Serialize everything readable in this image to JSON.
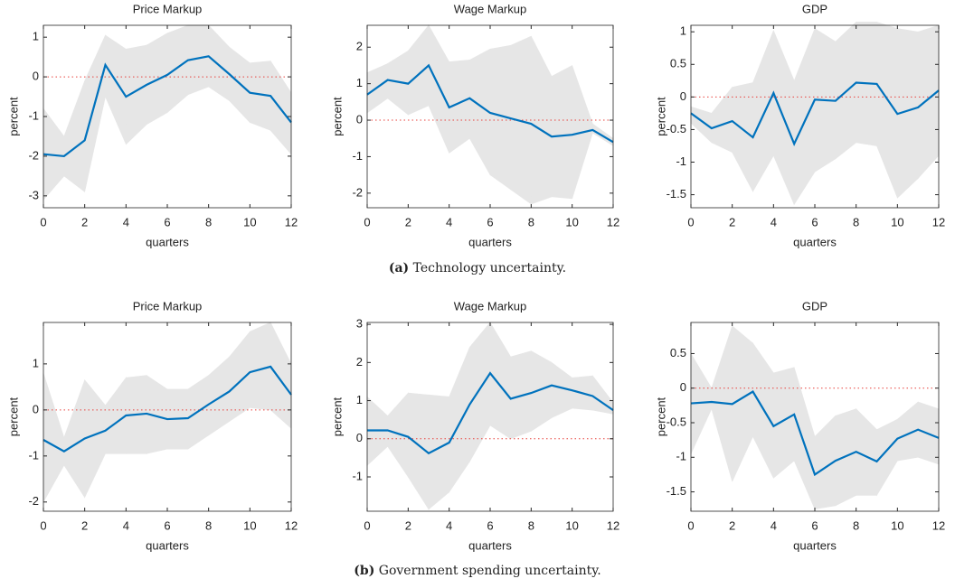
{
  "chart_data": [
    {
      "type": "line",
      "title": "Price Markup",
      "xlabel": "quarters",
      "ylabel": "percent",
      "x": [
        0,
        1,
        2,
        3,
        4,
        5,
        6,
        7,
        8,
        9,
        10,
        11,
        12
      ],
      "values": [
        -1.95,
        -2.0,
        -1.6,
        0.3,
        -0.5,
        -0.2,
        0.05,
        0.42,
        0.52,
        0.07,
        -0.4,
        -0.48,
        -1.15
      ],
      "upper": [
        -0.8,
        -1.5,
        -0.1,
        1.05,
        0.7,
        0.8,
        1.1,
        1.3,
        1.3,
        0.75,
        0.35,
        0.4,
        -0.4
      ],
      "lower": [
        -3.1,
        -2.5,
        -2.9,
        -0.5,
        -1.7,
        -1.2,
        -0.9,
        -0.45,
        -0.25,
        -0.6,
        -1.15,
        -1.35,
        -1.95
      ],
      "hline": 0,
      "color": "#0072bd",
      "band_color": "#e6e6e6",
      "hline_color": "#e8413c",
      "xlim": [
        0,
        12
      ],
      "xticks": [
        0,
        2,
        4,
        6,
        8,
        10,
        12
      ],
      "ylim": [
        -3.3,
        1.3
      ],
      "yticks": [
        -3,
        -2,
        -1,
        0,
        1
      ]
    },
    {
      "type": "line",
      "title": "Wage Markup",
      "xlabel": "quarters",
      "ylabel": "percent",
      "x": [
        0,
        1,
        2,
        3,
        4,
        5,
        6,
        7,
        8,
        9,
        10,
        11,
        12
      ],
      "values": [
        0.7,
        1.1,
        1.0,
        1.5,
        0.35,
        0.6,
        0.2,
        0.05,
        -0.1,
        -0.45,
        -0.4,
        -0.27,
        -0.6
      ],
      "upper": [
        1.3,
        1.55,
        1.9,
        2.6,
        1.6,
        1.65,
        1.95,
        2.05,
        2.3,
        1.2,
        1.5,
        -0.1,
        -0.5
      ],
      "lower": [
        0.2,
        0.6,
        0.15,
        0.4,
        -0.9,
        -0.5,
        -1.5,
        -1.9,
        -2.3,
        -2.1,
        -2.15,
        -0.35,
        -0.7
      ],
      "hline": 0,
      "color": "#0072bd",
      "band_color": "#e6e6e6",
      "hline_color": "#e8413c",
      "xlim": [
        0,
        12
      ],
      "xticks": [
        0,
        2,
        4,
        6,
        8,
        10,
        12
      ],
      "ylim": [
        -2.4,
        2.6
      ],
      "yticks": [
        -2,
        -1,
        0,
        1,
        2
      ]
    },
    {
      "type": "line",
      "title": "GDP",
      "xlabel": "quarters",
      "ylabel": "percent",
      "x": [
        0,
        1,
        2,
        3,
        4,
        5,
        6,
        7,
        8,
        9,
        10,
        11,
        12
      ],
      "values": [
        -0.25,
        -0.48,
        -0.37,
        -0.62,
        0.06,
        -0.72,
        -0.04,
        -0.06,
        0.22,
        0.2,
        -0.26,
        -0.16,
        0.1
      ],
      "upper": [
        -0.15,
        -0.25,
        0.15,
        0.22,
        1.02,
        0.25,
        1.05,
        0.85,
        1.15,
        1.15,
        1.05,
        1.0,
        1.1
      ],
      "lower": [
        -0.4,
        -0.7,
        -0.85,
        -1.45,
        -0.9,
        -1.65,
        -1.15,
        -0.95,
        -0.7,
        -0.75,
        -1.55,
        -1.25,
        -0.9
      ],
      "hline": 0,
      "color": "#0072bd",
      "band_color": "#e6e6e6",
      "hline_color": "#e8413c",
      "xlim": [
        0,
        12
      ],
      "xticks": [
        0,
        2,
        4,
        6,
        8,
        10,
        12
      ],
      "ylim": [
        -1.7,
        1.1
      ],
      "yticks": [
        -1.5,
        -1,
        -0.5,
        0,
        0.5,
        1
      ]
    },
    {
      "type": "line",
      "title": "Price Markup",
      "xlabel": "quarters",
      "ylabel": "percent",
      "x": [
        0,
        1,
        2,
        3,
        4,
        5,
        6,
        7,
        8,
        9,
        10,
        11,
        12
      ],
      "values": [
        -0.65,
        -0.9,
        -0.62,
        -0.45,
        -0.12,
        -0.08,
        -0.2,
        -0.18,
        0.12,
        0.4,
        0.82,
        0.94,
        0.33
      ],
      "upper": [
        0.8,
        -0.6,
        0.65,
        0.1,
        0.7,
        0.75,
        0.45,
        0.45,
        0.75,
        1.15,
        1.7,
        1.9,
        1.0
      ],
      "lower": [
        -2.0,
        -1.2,
        -1.9,
        -0.95,
        -0.95,
        -0.95,
        -0.85,
        -0.85,
        -0.55,
        -0.25,
        0.05,
        0.0,
        -0.4
      ],
      "hline": 0,
      "color": "#0072bd",
      "band_color": "#e6e6e6",
      "hline_color": "#e8413c",
      "xlim": [
        0,
        12
      ],
      "xticks": [
        0,
        2,
        4,
        6,
        8,
        10,
        12
      ],
      "ylim": [
        -2.2,
        1.9
      ],
      "yticks": [
        -2,
        -1,
        0,
        1
      ]
    },
    {
      "type": "line",
      "title": "Wage Markup",
      "xlabel": "quarters",
      "ylabel": "percent",
      "x": [
        0,
        1,
        2,
        3,
        4,
        5,
        6,
        7,
        8,
        9,
        10,
        11,
        12
      ],
      "values": [
        0.22,
        0.22,
        0.05,
        -0.38,
        -0.1,
        0.9,
        1.72,
        1.05,
        1.2,
        1.4,
        1.27,
        1.12,
        0.75
      ],
      "upper": [
        1.1,
        0.6,
        1.2,
        1.15,
        1.1,
        2.4,
        3.05,
        2.15,
        2.3,
        2.0,
        1.6,
        1.65,
        0.95
      ],
      "lower": [
        -0.7,
        -0.2,
        -1.0,
        -1.85,
        -1.4,
        -0.6,
        0.35,
        0.0,
        0.2,
        0.55,
        0.8,
        0.75,
        0.65
      ],
      "hline": 0,
      "color": "#0072bd",
      "band_color": "#e6e6e6",
      "hline_color": "#e8413c",
      "xlim": [
        0,
        12
      ],
      "xticks": [
        0,
        2,
        4,
        6,
        8,
        10,
        12
      ],
      "ylim": [
        -1.9,
        3.05
      ],
      "yticks": [
        -1,
        0,
        1,
        2,
        3
      ]
    },
    {
      "type": "line",
      "title": "GDP",
      "xlabel": "quarters",
      "ylabel": "percent",
      "x": [
        0,
        1,
        2,
        3,
        4,
        5,
        6,
        7,
        8,
        9,
        10,
        11,
        12
      ],
      "values": [
        -0.22,
        -0.2,
        -0.23,
        -0.05,
        -0.55,
        -0.38,
        -1.25,
        -1.05,
        -0.92,
        -1.06,
        -0.73,
        -0.6,
        -0.72
      ],
      "upper": [
        0.5,
        0.0,
        0.9,
        0.65,
        0.22,
        0.3,
        -0.7,
        -0.4,
        -0.3,
        -0.6,
        -0.45,
        -0.2,
        -0.3
      ],
      "lower": [
        -0.95,
        -0.3,
        -1.35,
        -0.7,
        -1.3,
        -1.05,
        -1.75,
        -1.7,
        -1.55,
        -1.55,
        -1.05,
        -1.0,
        -1.1
      ],
      "hline": 0,
      "color": "#0072bd",
      "band_color": "#e6e6e6",
      "hline_color": "#e8413c",
      "xlim": [
        0,
        12
      ],
      "xticks": [
        0,
        2,
        4,
        6,
        8,
        10,
        12
      ],
      "ylim": [
        -1.78,
        0.95
      ],
      "yticks": [
        -1.5,
        -1,
        -0.5,
        0,
        0.5
      ]
    }
  ],
  "captions": [
    {
      "label": "(a)",
      "text": "Technology uncertainty."
    },
    {
      "label": "(b)",
      "text": "Government spending uncertainty."
    }
  ]
}
